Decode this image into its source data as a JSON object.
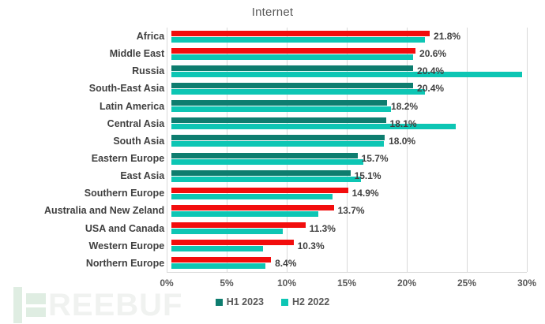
{
  "title": "Internet",
  "colors": {
    "h1_higher": "#F20D0D",
    "h1_lower": "#0E7D6F",
    "h2": "#0DC6B4",
    "gridline": "#D9D9D9",
    "data_label_text": "#404040",
    "axis_text": "#595959"
  },
  "chart_data": {
    "type": "bar",
    "orientation": "horizontal",
    "title": "Internet",
    "categories": [
      "Africa",
      "Middle East",
      "Russia",
      "South-East Asia",
      "Latin America",
      "Central Asia",
      "South Asia",
      "Eastern Europe",
      "East Asia",
      "Southern Europe",
      "Australia and New Zeland",
      "USA and Canada",
      "Western Europe",
      "Northern Europe"
    ],
    "series": [
      {
        "name": "H1 2023",
        "values": [
          21.8,
          20.6,
          20.4,
          20.4,
          18.2,
          18.1,
          18.0,
          15.7,
          15.1,
          14.9,
          13.7,
          11.3,
          10.3,
          8.4
        ],
        "bar_colors": [
          "#F20D0D",
          "#F20D0D",
          "#0E7D6F",
          "#0E7D6F",
          "#0E7D6F",
          "#0E7D6F",
          "#0E7D6F",
          "#0E7D6F",
          "#0E7D6F",
          "#F20D0D",
          "#F20D0D",
          "#F20D0D",
          "#F20D0D",
          "#F20D0D"
        ],
        "data_labels": [
          "21.8%",
          "20.6%",
          "20.4%",
          "20.4%",
          "18.2%",
          "18.1%",
          "18.0%",
          "15.7%",
          "15.1%",
          "14.9%",
          "13.7%",
          "11.3%",
          "10.3%",
          "8.4%"
        ]
      },
      {
        "name": "H2 2022",
        "color": "#0DC6B4",
        "values": [
          21.4,
          20.4,
          29.6,
          21.4,
          18.5,
          24.0,
          17.9,
          16.2,
          16.0,
          13.6,
          12.4,
          9.4,
          7.7,
          7.9
        ]
      }
    ],
    "xlim": [
      0,
      30
    ],
    "x_ticks": [
      "0%",
      "5%",
      "10%",
      "15%",
      "20%",
      "25%",
      "30%"
    ],
    "grid": "vertical",
    "legend_position": "bottom"
  },
  "legend": {
    "items": [
      {
        "label": "H1 2023",
        "color": "#0E7D6F"
      },
      {
        "label": "H2 2022",
        "color": "#0DC6B4"
      }
    ]
  },
  "watermark": {
    "brand": "FREEBUF",
    "text_letters": "REEBUF",
    "block_color": "#DFEDE2",
    "text_color": "#F0F2F0"
  }
}
